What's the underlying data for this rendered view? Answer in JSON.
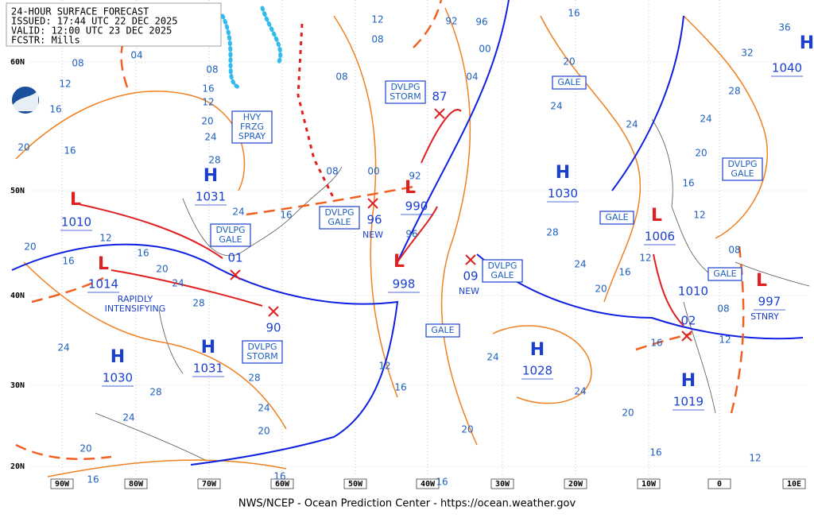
{
  "header": {
    "lines": [
      "24-HOUR SURFACE FORECAST",
      "ISSUED: 17:44 UTC 22 DEC 2025",
      "VALID:  12:00 UTC 23 DEC 2025",
      "FCSTR:  Mills"
    ]
  },
  "footer": "NWS/NCEP - Ocean Prediction Center - https://ocean.weather.gov",
  "latitudes": [
    "60N",
    "50N",
    "40N",
    "30N",
    "20N"
  ],
  "longitudes": [
    "90W",
    "80W",
    "70W",
    "60W",
    "50W",
    "40W",
    "30W",
    "20W",
    "10W",
    "0",
    "10E"
  ],
  "centers": [
    {
      "symbol": "H",
      "pressure": "1031"
    },
    {
      "symbol": "H",
      "pressure": "1030"
    },
    {
      "symbol": "H",
      "pressure": "1040"
    },
    {
      "symbol": "H",
      "pressure": "1030"
    },
    {
      "symbol": "H",
      "pressure": "1031"
    },
    {
      "symbol": "H",
      "pressure": "1028"
    },
    {
      "symbol": "H",
      "pressure": "1019"
    },
    {
      "symbol": "L",
      "pressure": "1010"
    },
    {
      "symbol": "L",
      "pressure": "1014"
    },
    {
      "symbol": "L",
      "pressure": "990"
    },
    {
      "symbol": "L",
      "pressure": "998"
    },
    {
      "symbol": "L",
      "pressure": "1006"
    },
    {
      "symbol": "L",
      "pressure": "997"
    }
  ],
  "new_lows": [
    {
      "pressure": "87"
    },
    {
      "pressure": "96",
      "note": "NEW"
    },
    {
      "pressure": "01"
    },
    {
      "pressure": "90"
    },
    {
      "pressure": "09",
      "note": "NEW"
    },
    {
      "pressure": "02"
    }
  ],
  "boxes": [
    {
      "lines": [
        "HVY",
        "FRZG",
        "SPRAY"
      ]
    },
    {
      "lines": [
        "DVLPG",
        "GALE"
      ]
    },
    {
      "lines": [
        "DVLPG",
        "GALE"
      ]
    },
    {
      "lines": [
        "DVLPG",
        "STORM"
      ]
    },
    {
      "lines": [
        "DVLPG",
        "STORM"
      ]
    },
    {
      "lines": [
        "GALE"
      ]
    },
    {
      "lines": [
        "DVLPG",
        "GALE"
      ]
    },
    {
      "lines": [
        "GALE"
      ]
    },
    {
      "lines": [
        "DVLPG",
        "GALE"
      ]
    },
    {
      "lines": [
        "GALE"
      ]
    },
    {
      "lines": [
        "GALE"
      ]
    }
  ],
  "labels": [
    "RAPIDLY",
    "INTENSIFYING",
    "STNRY",
    "1010"
  ],
  "isobar_labels": [
    "04",
    "08",
    "12",
    "16",
    "20",
    "16",
    "20",
    "16",
    "12",
    "16",
    "20",
    "24",
    "28",
    "24",
    "28",
    "24",
    "20",
    "16",
    "20",
    "24",
    "28",
    "12",
    "08",
    "08",
    "00",
    "92",
    "96",
    "16",
    "24",
    "12",
    "16",
    "20",
    "24",
    "28",
    "08",
    "08",
    "92",
    "96",
    "00",
    "04",
    "16",
    "20",
    "24",
    "24",
    "28",
    "24",
    "20",
    "16",
    "12",
    "16",
    "20",
    "24",
    "28",
    "32",
    "36",
    "12",
    "08",
    "08",
    "12",
    "16",
    "24",
    "24",
    "20",
    "20",
    "16",
    "12",
    "16",
    "16",
    "16",
    "12"
  ]
}
